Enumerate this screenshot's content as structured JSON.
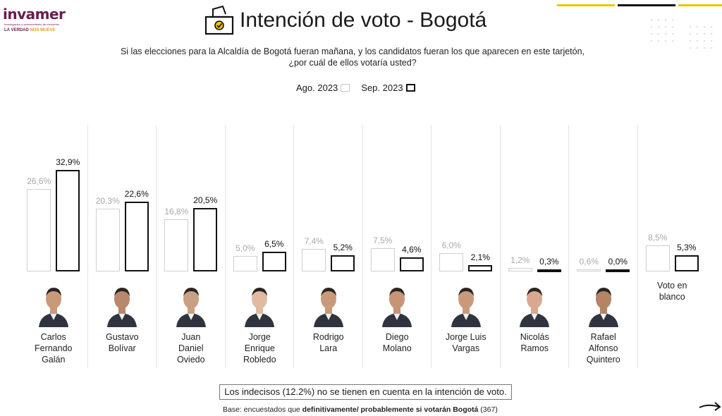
{
  "brand": {
    "name": "invamer",
    "subline": "investigación y asesoramiento de mercados",
    "tagline_a": "LA VERDAD",
    "tagline_b": "NOS MUEVE"
  },
  "title": "Intención de voto - Bogotá",
  "icon": "ballot-box-icon",
  "question_line1": "Si las elecciones para la Alcaldía de Bogotá fueran mañana, y los candidatos fueran los que aparecen en este tarjetón,",
  "question_line2": "¿por cuál de ellos votaría usted?",
  "legend": {
    "prev": "Ago. 2023",
    "curr": "Sep. 2023"
  },
  "colors": {
    "accent_yellow": "#f2c200",
    "dark": "#111111",
    "prev_border": "#cfcfcf",
    "prev_label": "#a8a8a8",
    "brand": "#6b1b4d"
  },
  "chart_data": {
    "type": "bar",
    "categories": [
      "Carlos Fernando Galán",
      "Gustavo Bolívar",
      "Juan Daniel Oviedo",
      "Jorge Enrique Robledo",
      "Rodrigo Lara",
      "Diego Molano",
      "Jorge Luis Vargas",
      "Nicolás Ramos",
      "Rafael Alfonso Quintero",
      "Voto en blanco"
    ],
    "series": [
      {
        "name": "Ago. 2023",
        "values": [
          26.6,
          20.3,
          16.8,
          5.0,
          7.4,
          7.5,
          6.0,
          1.2,
          0.6,
          8.5
        ]
      },
      {
        "name": "Sep. 2023",
        "values": [
          32.9,
          22.6,
          20.5,
          6.5,
          5.2,
          4.6,
          2.1,
          0.3,
          0.0,
          5.3
        ]
      }
    ],
    "value_labels_prev": [
      "26,6%",
      "20,3%",
      "16,8%",
      "5,0%",
      "7,4%",
      "7,5%",
      "6,0%",
      "1,2%",
      "0,6%",
      "8,5%"
    ],
    "value_labels_curr": [
      "32,9%",
      "22,6%",
      "20,5%",
      "6,5%",
      "5,2%",
      "4,6%",
      "2,1%",
      "0,3%",
      "0,0%",
      "5,3%"
    ],
    "name_lines": [
      [
        "Carlos",
        "Fernando",
        "Galán"
      ],
      [
        "Gustavo",
        "Bolívar"
      ],
      [
        "Juan",
        "Daniel",
        "Oviedo"
      ],
      [
        "Jorge",
        "Enrique",
        "Robledo"
      ],
      [
        "Rodrigo",
        "Lara"
      ],
      [
        "Diego",
        "Molano"
      ],
      [
        "Jorge Luis",
        "Vargas"
      ],
      [
        "Nicolás",
        "Ramos"
      ],
      [
        "Rafael",
        "Alfonso",
        "Quintero"
      ],
      [
        "Voto en",
        "blanco"
      ]
    ],
    "ylim": [
      0,
      33
    ],
    "unit": "%",
    "grid": false
  },
  "note": "Los indecisos (12.2%) no se tienen en cuenta en la intención de voto.",
  "base_prefix": "Base: encuestados que ",
  "base_bold": "definitivamente/ probablemente si votarán Bogotá",
  "base_suffix": " (367)"
}
